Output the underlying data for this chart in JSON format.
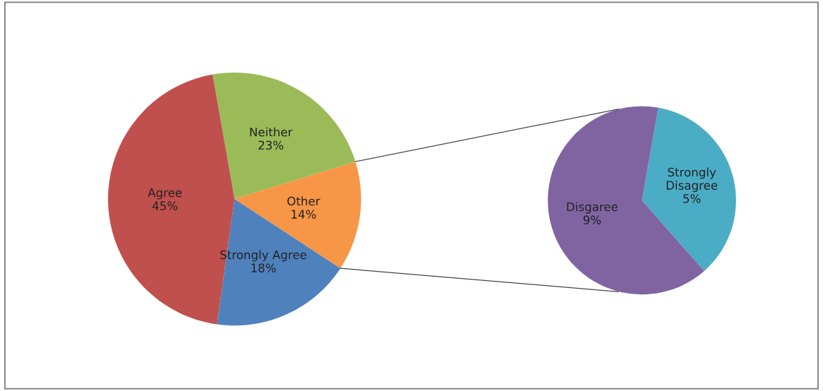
{
  "chart_data": [
    {
      "type": "pie",
      "categories": [
        "Neither",
        "Other",
        "Strongly Agree",
        "Agree"
      ],
      "values": [
        23,
        14,
        18,
        45
      ],
      "value_labels": [
        "23%",
        "14%",
        "18%",
        "45%"
      ],
      "colors": [
        "#9bbb59",
        "#f79646",
        "#4f81bd",
        "#c0504d"
      ]
    },
    {
      "type": "pie",
      "categories": [
        "Strongly\nDisagree",
        "Disgaree"
      ],
      "values": [
        5,
        9
      ],
      "value_labels": [
        "5%",
        "9%"
      ],
      "colors": [
        "#4bacc6",
        "#8064a2"
      ]
    }
  ]
}
